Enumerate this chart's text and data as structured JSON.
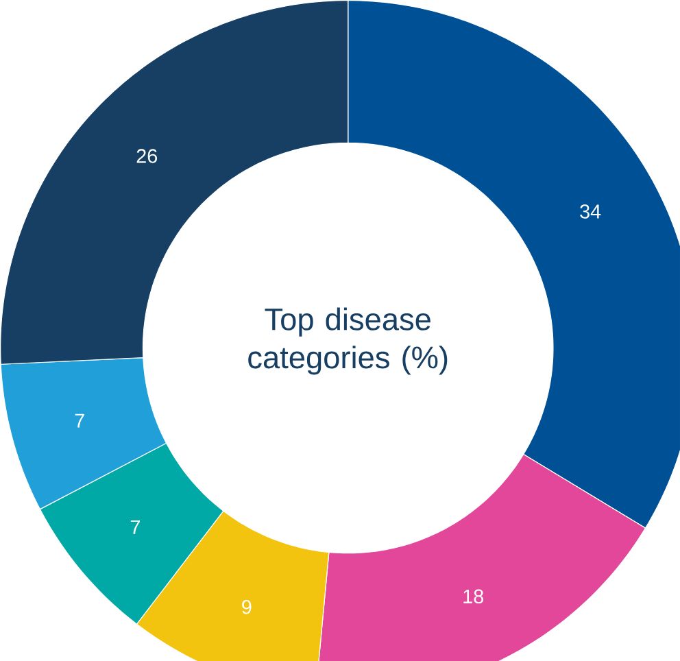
{
  "chart_data": {
    "type": "donut",
    "title": "Top disease categories (%)",
    "categories": [
      null,
      null,
      null,
      null,
      null,
      null
    ],
    "values": [
      34,
      18,
      9,
      7,
      7,
      26
    ],
    "colors": [
      "#005096",
      "#e2479a",
      "#f2c40f",
      "#00a9a5",
      "#209fd8",
      "#173e63"
    ],
    "data_labels": true
  }
}
